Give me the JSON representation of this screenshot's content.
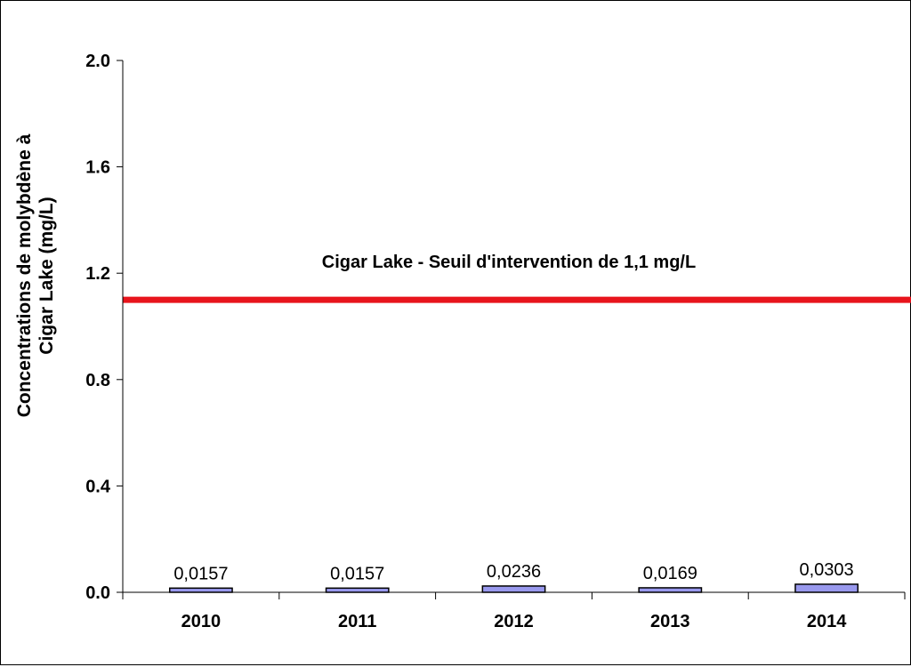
{
  "chart_data": {
    "type": "bar",
    "categories": [
      "2010",
      "2011",
      "2012",
      "2013",
      "2014"
    ],
    "values": [
      0.0157,
      0.0157,
      0.0236,
      0.0169,
      0.0303
    ],
    "data_labels": [
      "0,0157",
      "0,0157",
      "0,0236",
      "0,0169",
      "0,0303"
    ],
    "ylabel_lines": [
      "Concentrations de molybdène à",
      "Cigar Lake (mg/L)"
    ],
    "ylim": [
      0,
      2.0
    ],
    "yticks": [
      0.0,
      0.4,
      0.8,
      1.2,
      1.6,
      2.0
    ],
    "ytick_labels": [
      "0.0",
      "0.4",
      "0.8",
      "1.2",
      "1.6",
      "2.0"
    ],
    "threshold": {
      "value": 1.1,
      "label": "Cigar Lake - Seuil d'intervention de 1,1 mg/L",
      "color": "#e8141c"
    },
    "bar_color": "#9999ee",
    "grid": false,
    "legend": "none"
  }
}
